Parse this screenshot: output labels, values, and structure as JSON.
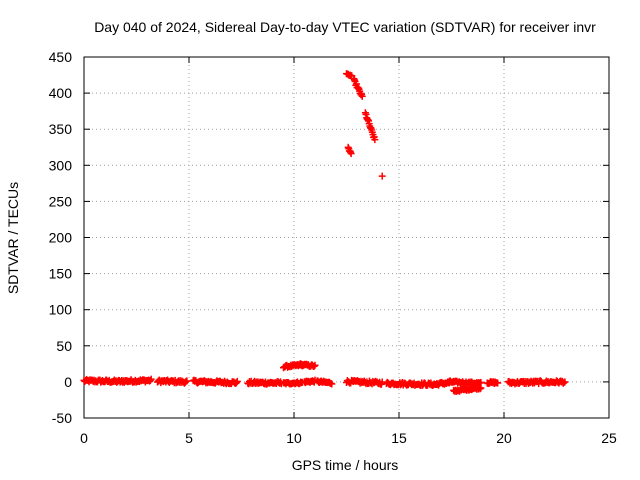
{
  "chart_data": {
    "type": "scatter",
    "title": "Day 040 of 2024, Sidereal Day-to-day VTEC variation (SDTVAR) for receiver invr",
    "xlabel": "GPS time / hours",
    "ylabel": "SDTVAR / TECUs",
    "xlim": [
      0,
      25
    ],
    "ylim": [
      -50,
      450
    ],
    "xticks": [
      0,
      5,
      10,
      15,
      20,
      25
    ],
    "yticks": [
      -50,
      0,
      50,
      100,
      150,
      200,
      250,
      300,
      350,
      400,
      450
    ],
    "grid": true,
    "marker": "+",
    "color": "#ff0000",
    "segments": [
      {
        "x0": 0.0,
        "x1": 1.8,
        "y0": 1.5,
        "y1": 0.5,
        "step": 0.04,
        "jitter": 2
      },
      {
        "x0": 1.8,
        "x1": 3.2,
        "y0": 1.0,
        "y1": 2.0,
        "step": 0.04,
        "jitter": 2
      },
      {
        "x0": 3.5,
        "x1": 4.9,
        "y0": 1.0,
        "y1": 0.0,
        "step": 0.04,
        "jitter": 2
      },
      {
        "x0": 5.2,
        "x1": 7.3,
        "y0": 0.5,
        "y1": -1.0,
        "step": 0.04,
        "jitter": 2
      },
      {
        "x0": 7.8,
        "x1": 9.4,
        "y0": -1.0,
        "y1": -1.5,
        "step": 0.04,
        "jitter": 2
      },
      {
        "x0": 9.5,
        "x1": 10.4,
        "y0": 21.0,
        "y1": 23.5,
        "step": 0.04,
        "jitter": 1.5
      },
      {
        "x0": 10.3,
        "x1": 11.0,
        "y0": 24.0,
        "y1": 22.0,
        "step": 0.04,
        "jitter": 1.5
      },
      {
        "x0": 9.5,
        "x1": 10.4,
        "y0": -2.0,
        "y1": -1.0,
        "step": 0.04,
        "jitter": 1.5
      },
      {
        "x0": 10.5,
        "x1": 11.0,
        "y0": 0.0,
        "y1": 1.0,
        "step": 0.04,
        "jitter": 1.5
      },
      {
        "x0": 11.1,
        "x1": 11.8,
        "y0": 0.5,
        "y1": -1.5,
        "step": 0.04,
        "jitter": 1.5
      },
      {
        "x0": 12.5,
        "x1": 14.2,
        "y0": 0.5,
        "y1": -1.5,
        "step": 0.04,
        "jitter": 2
      },
      {
        "x0": 14.4,
        "x1": 16.8,
        "y0": -2.0,
        "y1": -3.5,
        "step": 0.04,
        "jitter": 2
      },
      {
        "x0": 16.8,
        "x1": 17.4,
        "y0": -3.0,
        "y1": -1.0,
        "step": 0.04,
        "jitter": 2
      },
      {
        "x0": 17.4,
        "x1": 18.9,
        "y0": 0.0,
        "y1": -2.0,
        "step": 0.04,
        "jitter": 1.5
      },
      {
        "x0": 17.6,
        "x1": 18.9,
        "y0": -12.5,
        "y1": -8.0,
        "step": 0.04,
        "jitter": 1.5
      },
      {
        "x0": 19.2,
        "x1": 19.7,
        "y0": -1.0,
        "y1": -1.0,
        "step": 0.04,
        "jitter": 1.5
      },
      {
        "x0": 20.2,
        "x1": 22.9,
        "y0": -1.0,
        "y1": 0.0,
        "step": 0.04,
        "jitter": 2
      },
      {
        "x0": 12.5,
        "x1": 12.75,
        "y0": 426,
        "y1": 424,
        "step": 0.04,
        "jitter": 1
      },
      {
        "x0": 12.85,
        "x1": 13.25,
        "y0": 418,
        "y1": 395,
        "step": 0.03,
        "jitter": 2
      },
      {
        "x0": 13.4,
        "x1": 13.85,
        "y0": 372,
        "y1": 335,
        "step": 0.03,
        "jitter": 2
      },
      {
        "x0": 12.58,
        "x1": 12.72,
        "y0": 325,
        "y1": 315,
        "step": 0.03,
        "jitter": 1.5
      }
    ],
    "points": [
      {
        "x": 14.2,
        "y": 285
      }
    ]
  }
}
